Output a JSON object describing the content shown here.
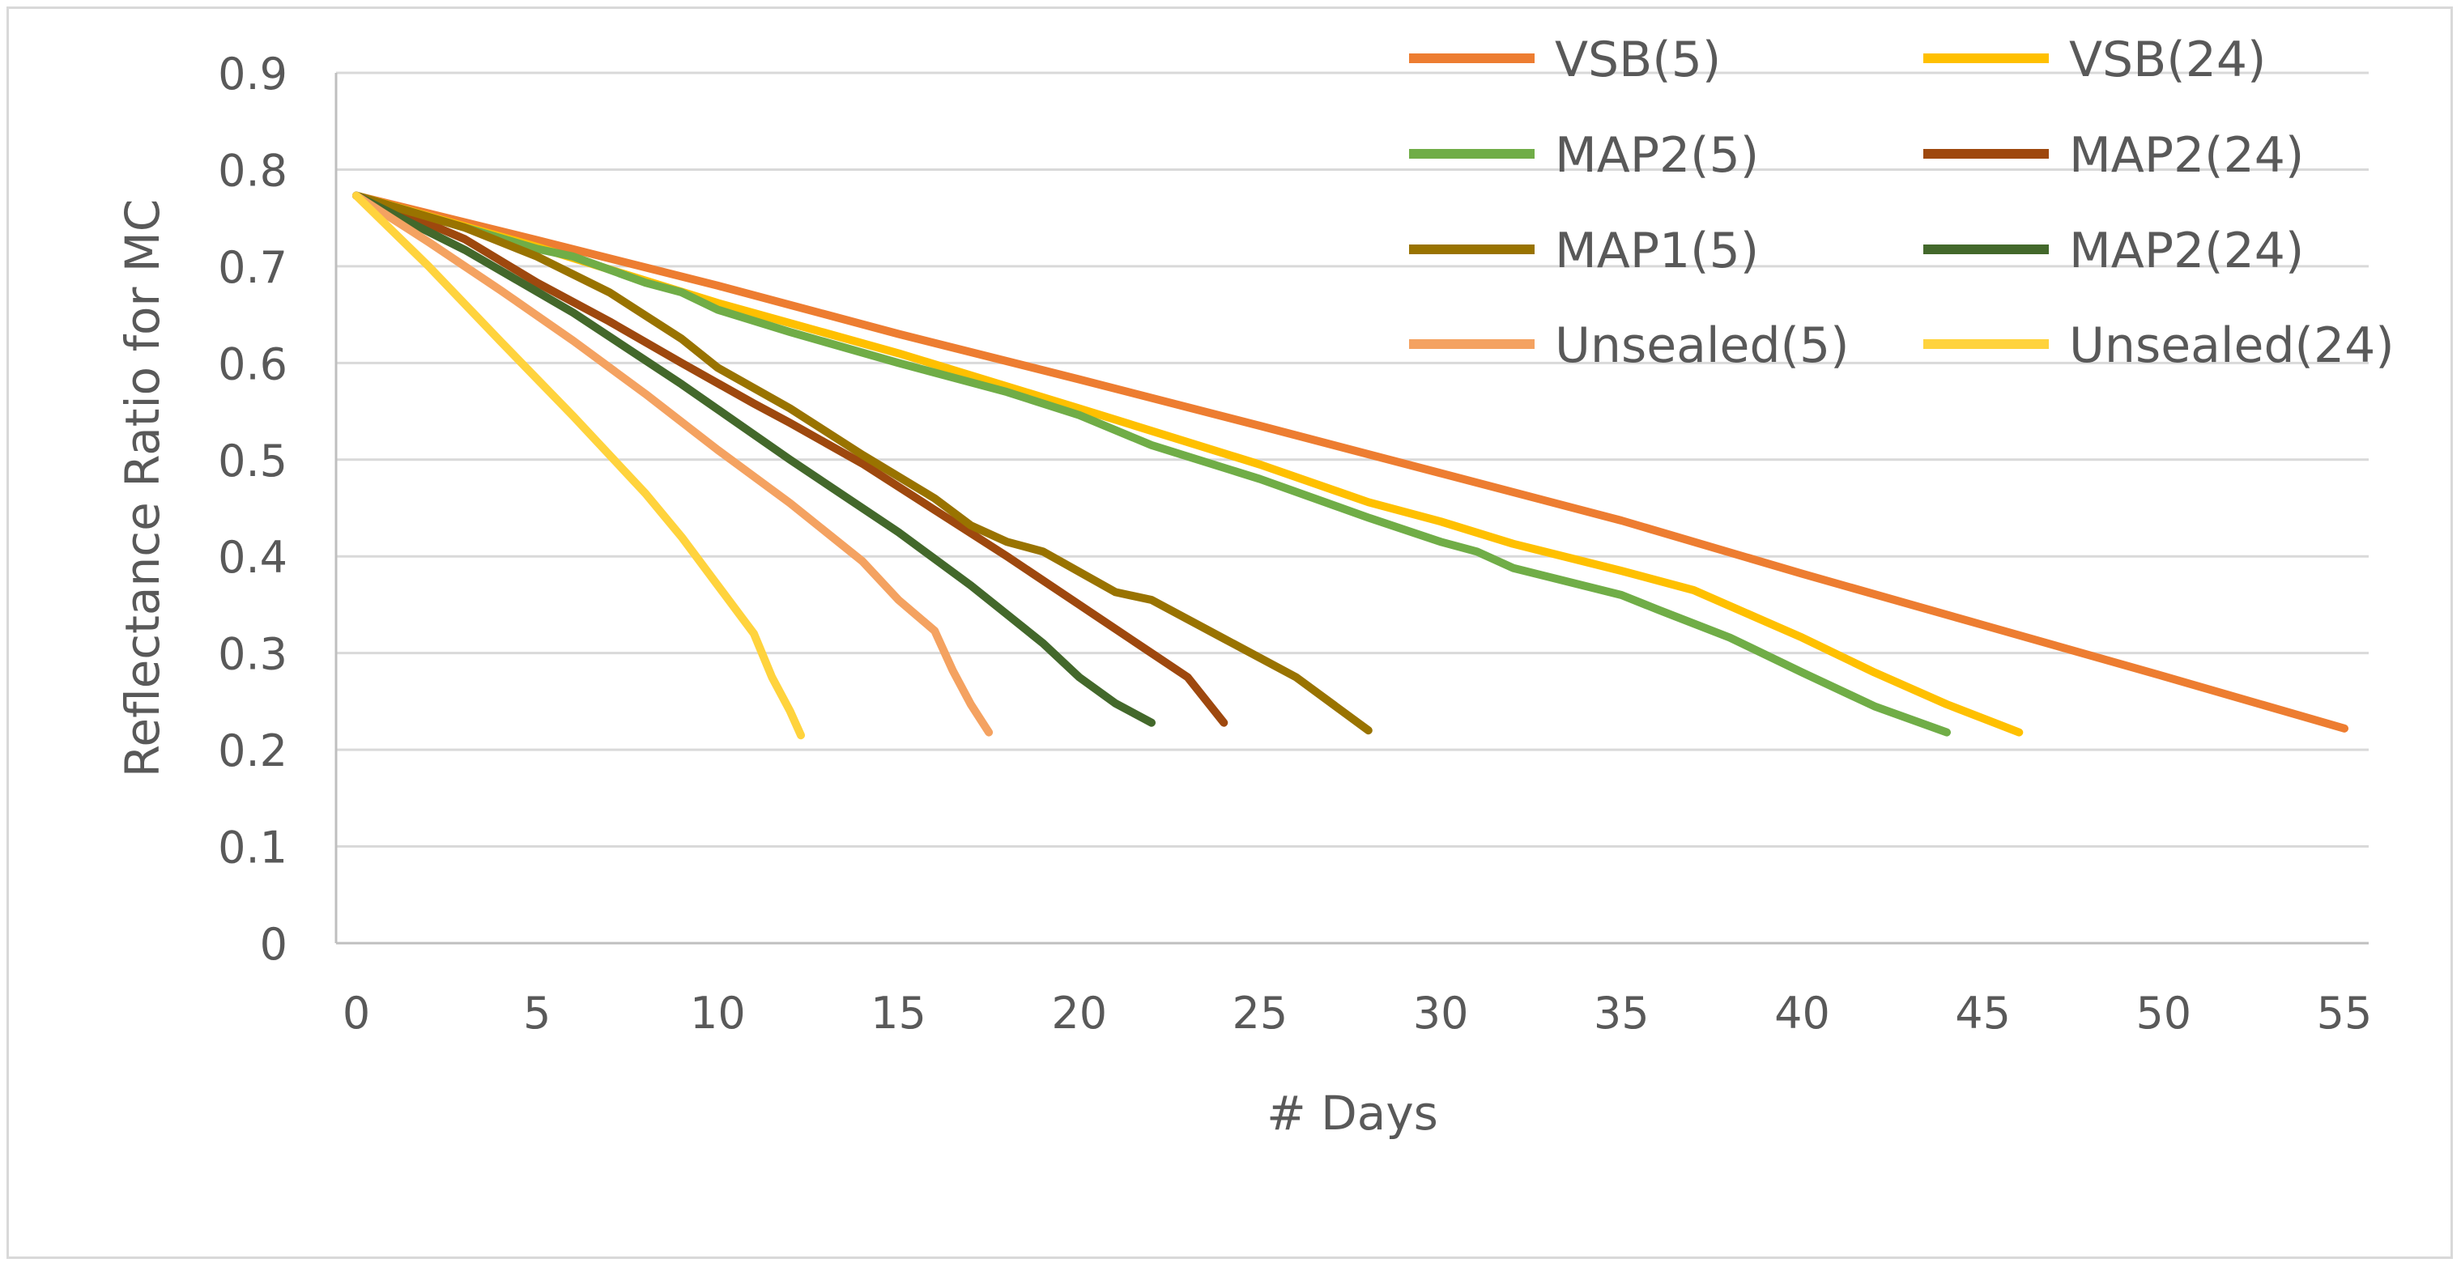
{
  "chart_data": {
    "type": "line",
    "title": "",
    "xlabel": "# Days",
    "ylabel": "Reflectance Ratio for MC",
    "xlim": [
      0,
      55
    ],
    "ylim": [
      0,
      0.9
    ],
    "xticks": [
      "0",
      "5",
      "10",
      "15",
      "20",
      "25",
      "30",
      "35",
      "40",
      "45",
      "50",
      "55"
    ],
    "yticks": [
      "0",
      "0.1",
      "0.2",
      "0.3",
      "0.4",
      "0.5",
      "0.6",
      "0.7",
      "0.8",
      "0.9"
    ],
    "grid": true,
    "legend_position": "top-right",
    "series": [
      {
        "name": "VSB(5)",
        "color": "#ed7d31",
        "points": [
          [
            0,
            0.773
          ],
          [
            5,
            0.727
          ],
          [
            10,
            0.68
          ],
          [
            15,
            0.63
          ],
          [
            20,
            0.583
          ],
          [
            25,
            0.535
          ],
          [
            30,
            0.486
          ],
          [
            35,
            0.437
          ],
          [
            40,
            0.382
          ],
          [
            45,
            0.329
          ],
          [
            50,
            0.276
          ],
          [
            55,
            0.222
          ]
        ]
      },
      {
        "name": "VSB(24)",
        "color": "#ffc000",
        "points": [
          [
            0,
            0.773
          ],
          [
            5,
            0.72
          ],
          [
            10,
            0.662
          ],
          [
            15,
            0.61
          ],
          [
            20,
            0.553
          ],
          [
            25,
            0.495
          ],
          [
            28,
            0.456
          ],
          [
            30,
            0.436
          ],
          [
            32,
            0.413
          ],
          [
            35,
            0.385
          ],
          [
            37,
            0.365
          ],
          [
            40,
            0.316
          ],
          [
            42,
            0.28
          ],
          [
            44,
            0.247
          ],
          [
            46,
            0.218
          ]
        ]
      },
      {
        "name": "MAP2(5)",
        "color": "#70ad47",
        "points": [
          [
            0,
            0.773
          ],
          [
            3,
            0.74
          ],
          [
            5,
            0.718
          ],
          [
            6,
            0.71
          ],
          [
            8,
            0.683
          ],
          [
            9,
            0.673
          ],
          [
            10,
            0.655
          ],
          [
            12,
            0.632
          ],
          [
            15,
            0.6
          ],
          [
            18,
            0.57
          ],
          [
            20,
            0.546
          ],
          [
            22,
            0.515
          ],
          [
            25,
            0.48
          ],
          [
            28,
            0.44
          ],
          [
            30,
            0.415
          ],
          [
            31,
            0.405
          ],
          [
            32,
            0.388
          ],
          [
            35,
            0.36
          ],
          [
            36,
            0.345
          ],
          [
            38,
            0.316
          ],
          [
            40,
            0.28
          ],
          [
            42,
            0.245
          ],
          [
            44,
            0.218
          ]
        ]
      },
      {
        "name": "MAP2(24)",
        "color": "#9e480e",
        "points": [
          [
            0,
            0.773
          ],
          [
            2,
            0.744
          ],
          [
            3,
            0.728
          ],
          [
            5,
            0.683
          ],
          [
            7,
            0.643
          ],
          [
            9,
            0.6
          ],
          [
            11,
            0.558
          ],
          [
            12,
            0.538
          ],
          [
            14,
            0.496
          ],
          [
            16,
            0.448
          ],
          [
            18,
            0.4
          ],
          [
            20,
            0.35
          ],
          [
            22,
            0.3
          ],
          [
            23,
            0.275
          ],
          [
            24,
            0.228
          ]
        ]
      },
      {
        "name": "MAP1(5)",
        "color": "#997300",
        "points": [
          [
            0,
            0.773
          ],
          [
            3,
            0.74
          ],
          [
            5,
            0.71
          ],
          [
            7,
            0.673
          ],
          [
            9,
            0.625
          ],
          [
            10,
            0.595
          ],
          [
            12,
            0.553
          ],
          [
            14,
            0.505
          ],
          [
            16,
            0.46
          ],
          [
            17,
            0.432
          ],
          [
            18,
            0.415
          ],
          [
            19,
            0.405
          ],
          [
            21,
            0.363
          ],
          [
            22,
            0.355
          ],
          [
            24,
            0.315
          ],
          [
            26,
            0.275
          ],
          [
            28,
            0.22
          ]
        ]
      },
      {
        "name": "MAP2(24)",
        "color": "#43682b",
        "points": [
          [
            0,
            0.773
          ],
          [
            3,
            0.717
          ],
          [
            6,
            0.652
          ],
          [
            9,
            0.578
          ],
          [
            12,
            0.5
          ],
          [
            15,
            0.425
          ],
          [
            17,
            0.37
          ],
          [
            18,
            0.34
          ],
          [
            19,
            0.31
          ],
          [
            20,
            0.275
          ],
          [
            21,
            0.248
          ],
          [
            22,
            0.228
          ]
        ]
      },
      {
        "name": "Unsealed(5)",
        "color": "#f4a261",
        "points": [
          [
            0,
            0.773
          ],
          [
            2,
            0.725
          ],
          [
            4,
            0.675
          ],
          [
            6,
            0.623
          ],
          [
            8,
            0.568
          ],
          [
            10,
            0.51
          ],
          [
            12,
            0.455
          ],
          [
            14,
            0.395
          ],
          [
            15,
            0.355
          ],
          [
            16,
            0.323
          ],
          [
            16.5,
            0.282
          ],
          [
            17,
            0.247
          ],
          [
            17.5,
            0.218
          ]
        ]
      },
      {
        "name": "Unsealed(24)",
        "color": "#ffd33d",
        "points": [
          [
            0,
            0.773
          ],
          [
            2,
            0.7
          ],
          [
            4,
            0.622
          ],
          [
            6,
            0.545
          ],
          [
            8,
            0.465
          ],
          [
            9,
            0.42
          ],
          [
            10,
            0.37
          ],
          [
            11,
            0.32
          ],
          [
            11.5,
            0.275
          ],
          [
            12,
            0.24
          ],
          [
            12.3,
            0.215
          ]
        ]
      }
    ]
  }
}
